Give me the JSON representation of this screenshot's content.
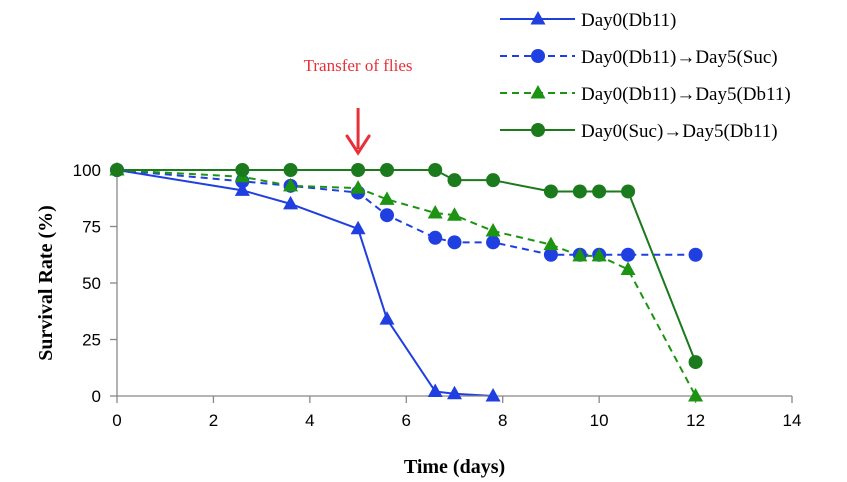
{
  "chart_data": {
    "type": "line",
    "title": "",
    "xlabel": "Time (days)",
    "ylabel": "Survival Rate (%)",
    "xlim": [
      0,
      14
    ],
    "ylim": [
      0,
      100
    ],
    "x_ticks": [
      "0",
      "2",
      "4",
      "6",
      "8",
      "10",
      "12",
      "14"
    ],
    "y_ticks": [
      "0",
      "25",
      "50",
      "75",
      "100"
    ],
    "grid": false,
    "legend_position": "top-right",
    "annotation": {
      "text": "Transfer of flies",
      "x": 5,
      "color": "#e8303a"
    },
    "series": [
      {
        "name": "Day0(Db11)",
        "color": "#1f3fe0",
        "line": "solid",
        "marker": "triangle",
        "x": [
          0,
          2.6,
          3.6,
          5,
          5.6,
          6.6,
          7,
          7.8
        ],
        "y": [
          100,
          91,
          85,
          74,
          34,
          2,
          1,
          0
        ]
      },
      {
        "name": "Day0(Db11)→Day5(Suc)",
        "color": "#1f3fe0",
        "line": "dashed",
        "marker": "circle",
        "x": [
          0,
          2.6,
          3.6,
          5,
          5.6,
          6.6,
          7,
          7.8,
          9,
          9.6,
          10,
          10.6,
          12
        ],
        "y": [
          100,
          95,
          93,
          90,
          80,
          70,
          68,
          68,
          62.5,
          62.5,
          62.5,
          62.5,
          62.5
        ]
      },
      {
        "name": "Day0(Db11)→Day5(Db11)",
        "color": "#1c9412",
        "line": "dashed",
        "marker": "triangle",
        "x": [
          0,
          2.6,
          3.6,
          5,
          5.6,
          6.6,
          7,
          7.8,
          9,
          9.6,
          10,
          10.6,
          12
        ],
        "y": [
          100,
          97,
          93,
          92,
          87,
          81,
          80,
          73,
          67,
          62,
          62,
          56,
          0
        ]
      },
      {
        "name": "Day0(Suc)→Day5(Db11)",
        "color": "#1a7a1c",
        "line": "solid",
        "marker": "circle",
        "x": [
          0,
          2.6,
          3.6,
          5,
          5.6,
          6.6,
          7,
          7.8,
          9,
          9.6,
          10,
          10.6,
          12
        ],
        "y": [
          100,
          100,
          100,
          100,
          100,
          100,
          95.5,
          95.5,
          90.5,
          90.5,
          90.5,
          90.5,
          15
        ]
      }
    ]
  }
}
